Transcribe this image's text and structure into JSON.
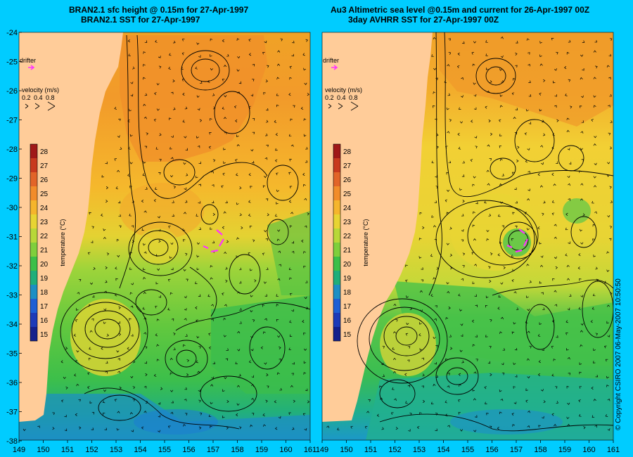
{
  "panels": [
    {
      "title_line1": "BRAN2.1 sfc height @ 0.15m for 27-Apr-1997",
      "title_line2": "BRAN2.1 SST for 27-Apr-1997",
      "drifter_label": "drifter",
      "velocity_label": "velocity (m/s)",
      "velocity_values": [
        "0.2",
        "0.4",
        "0.8"
      ]
    },
    {
      "title_line1": "Au3 Altimetric sea level  @0.15m and current for 26-Apr-1997 00Z",
      "title_line2": "3day AVHRR SST for 27-Apr-1997 00Z",
      "drifter_label": "drifter",
      "velocity_label": "velocity (m/s)",
      "velocity_values": [
        "0.2",
        "0.4",
        "0.8"
      ]
    }
  ],
  "colorbar": {
    "label": "temperature (°C)",
    "ticks": [
      "28",
      "27",
      "26",
      "25",
      "24",
      "23",
      "22",
      "21",
      "20",
      "19",
      "18",
      "17",
      "16",
      "15"
    ],
    "colors": [
      "#a01818",
      "#c83a1e",
      "#e26428",
      "#f28c2a",
      "#f5b52c",
      "#e8d432",
      "#b8d838",
      "#7fcf3c",
      "#3cbf48",
      "#1fae7a",
      "#1c8fc4",
      "#1e5fd4",
      "#1d3ab8",
      "#14208c"
    ]
  },
  "axes": {
    "lat_ticks": [
      "-24",
      "-25",
      "-26",
      "-27",
      "-28",
      "-29",
      "-30",
      "-31",
      "-32",
      "-33",
      "-34",
      "-35",
      "-36",
      "-37",
      "-38"
    ],
    "lon_ticks_left": [
      "149",
      "150",
      "151",
      "152",
      "153",
      "154",
      "155",
      "156",
      "157",
      "158",
      "159",
      "160",
      "161"
    ],
    "lon_ticks_right": [
      "149",
      "150",
      "151",
      "152",
      "153",
      "154",
      "155",
      "156",
      "157",
      "158",
      "159",
      "160",
      "161"
    ]
  },
  "copyright": "© Copyright CSIRO 2007  06-May-2007 10:50:50",
  "colors": {
    "background": "#00ccff",
    "land": "#ffcc99",
    "drifter": "#ff33ff"
  }
}
